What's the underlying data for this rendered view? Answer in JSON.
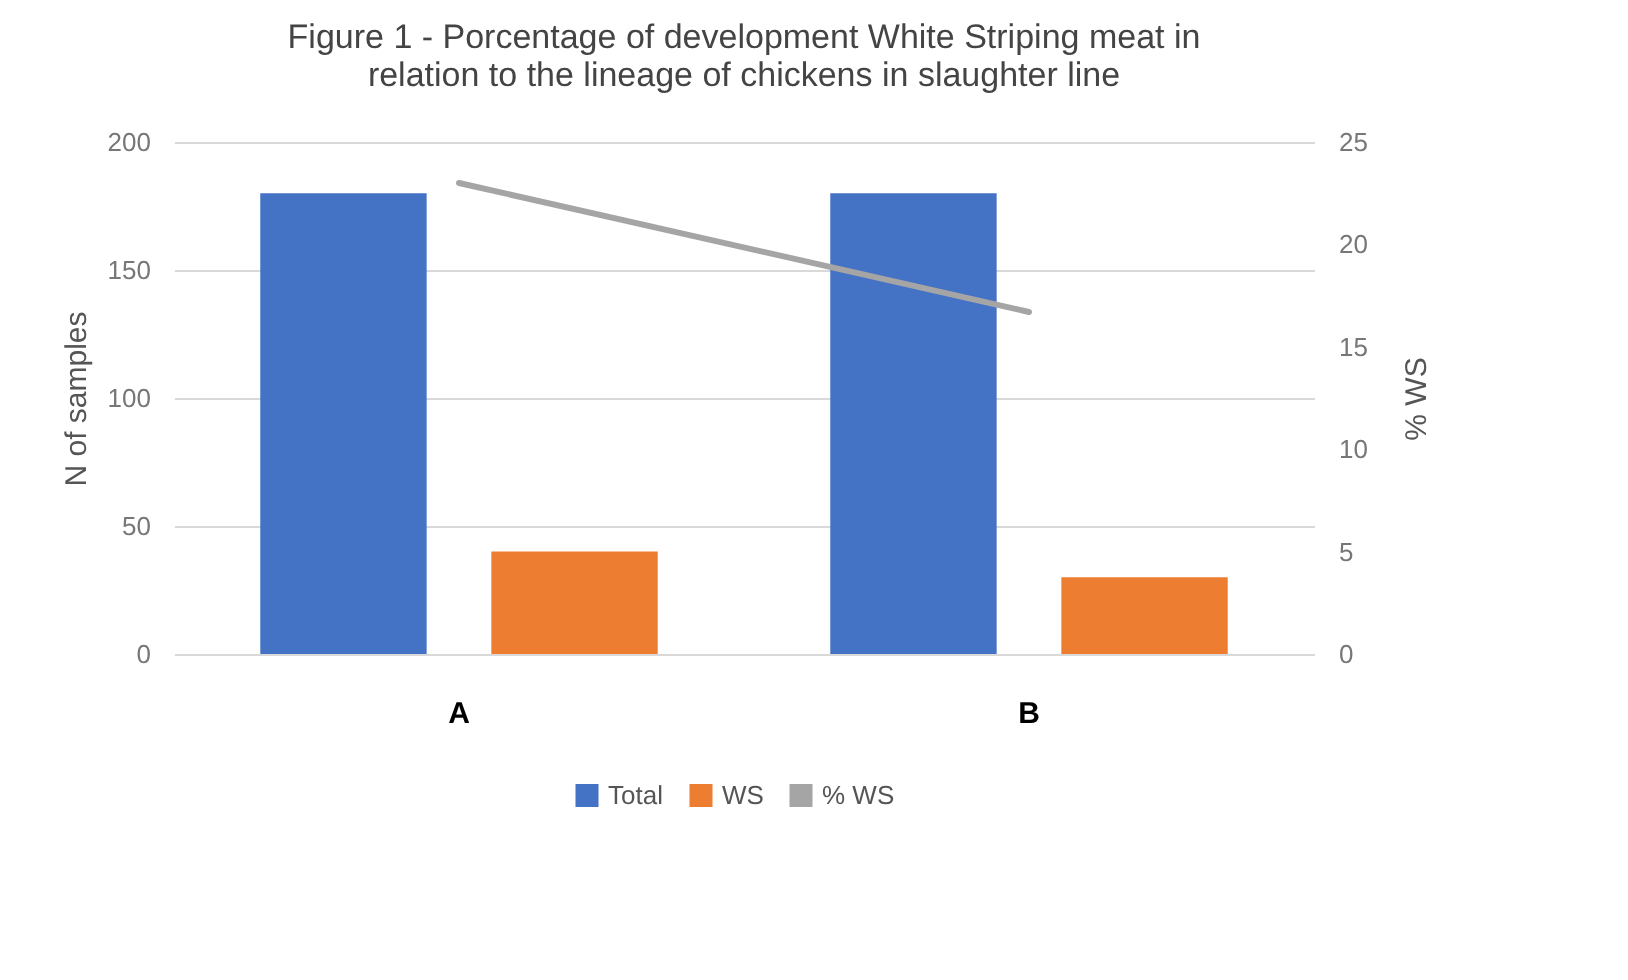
{
  "chart_data": {
    "type": "bar",
    "title": "Figure 1 - Porcentage of development White Striping meat in\nrelation to the lineage of chickens in slaughter line",
    "categories": [
      "A",
      "B"
    ],
    "series": [
      {
        "name": "Total",
        "color": "#4472c4",
        "values": [
          180,
          180
        ]
      },
      {
        "name": "WS",
        "color": "#ed7d31",
        "values": [
          40,
          30
        ]
      },
      {
        "name": "% WS",
        "color": "#a5a5a5",
        "type": "line",
        "axis": "y2",
        "values": [
          23,
          16.7
        ]
      }
    ],
    "ylabel": "N of samples",
    "y2label": "% WS",
    "ylim": [
      0,
      200
    ],
    "yticks": [
      0,
      50,
      100,
      150,
      200
    ],
    "y2lim": [
      0,
      25
    ],
    "y2ticks": [
      0,
      5,
      10,
      15,
      20,
      25
    ],
    "grid": "y",
    "legend": "bottom"
  }
}
